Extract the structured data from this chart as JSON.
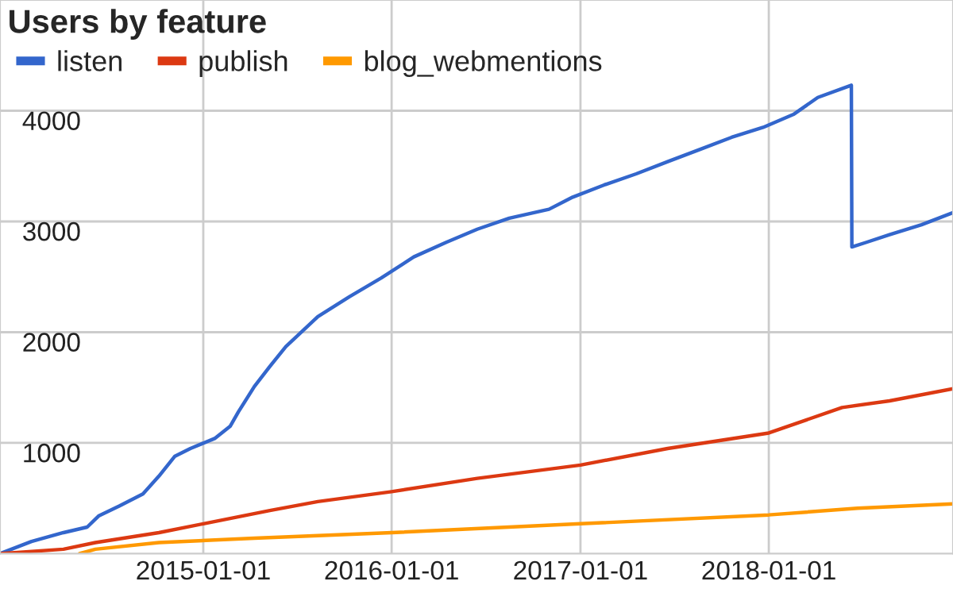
{
  "chart_data": {
    "type": "line",
    "title": "Users by feature",
    "series": [
      {
        "name": "listen",
        "color": "#3366cc",
        "x": [
          "2013-12-03",
          "2014-02-02",
          "2014-04-05",
          "2014-05-21",
          "2014-06-12",
          "2014-07-22",
          "2014-09-06",
          "2014-10-07",
          "2014-11-07",
          "2014-12-07",
          "2015-01-23",
          "2015-02-22",
          "2015-03-10",
          "2015-04-10",
          "2015-05-10",
          "2015-06-10",
          "2015-08-11",
          "2015-10-11",
          "2015-12-12",
          "2016-02-13",
          "2016-04-15",
          "2016-06-15",
          "2016-08-16",
          "2016-11-01",
          "2016-12-17",
          "2017-02-16",
          "2017-04-19",
          "2017-06-19",
          "2017-08-20",
          "2017-10-21",
          "2017-12-21",
          "2018-02-19",
          "2018-04-06",
          "2018-06-10",
          "2018-06-11",
          "2018-07-08",
          "2018-08-23",
          "2018-10-24",
          "2018-12-24"
        ],
        "values": [
          0,
          110,
          190,
          240,
          340,
          430,
          540,
          700,
          880,
          950,
          1040,
          1150,
          1280,
          1510,
          1690,
          1870,
          2140,
          2320,
          2490,
          2680,
          2810,
          2930,
          3030,
          3110,
          3220,
          3330,
          3430,
          3540,
          3650,
          3760,
          3850,
          3970,
          4120,
          4230,
          2770,
          2810,
          2880,
          2970,
          3080
        ]
      },
      {
        "name": "publish",
        "color": "#dc3912",
        "x": [
          "2013-12-03",
          "2014-04-05",
          "2014-06-06",
          "2014-10-07",
          "2015-01-01",
          "2015-05-10",
          "2015-08-11",
          "2016-01-01",
          "2016-06-15",
          "2017-01-01",
          "2017-06-19",
          "2018-01-01",
          "2018-05-23",
          "2018-08-23",
          "2018-12-24"
        ],
        "values": [
          0,
          40,
          100,
          190,
          270,
          390,
          470,
          560,
          680,
          800,
          950,
          1090,
          1320,
          1380,
          1490
        ]
      },
      {
        "name": "blog_webmentions",
        "color": "#ff9900",
        "x": [
          "2014-05-06",
          "2014-06-06",
          "2014-10-07",
          "2015-04-10",
          "2016-01-01",
          "2017-01-01",
          "2018-01-01",
          "2018-06-22",
          "2018-12-24"
        ],
        "values": [
          0,
          40,
          100,
          140,
          190,
          270,
          350,
          410,
          450
        ]
      }
    ],
    "xlim": [
      "2013-12-03",
      "2018-12-24"
    ],
    "xticks": [
      "2015-01-01",
      "2016-01-01",
      "2017-01-01",
      "2018-01-01"
    ],
    "ylim": [
      0,
      5000
    ],
    "yticks": [
      1000,
      2000,
      3000,
      4000
    ],
    "grid": true,
    "legend": "top left",
    "marker": "none",
    "line_style": "solid"
  }
}
